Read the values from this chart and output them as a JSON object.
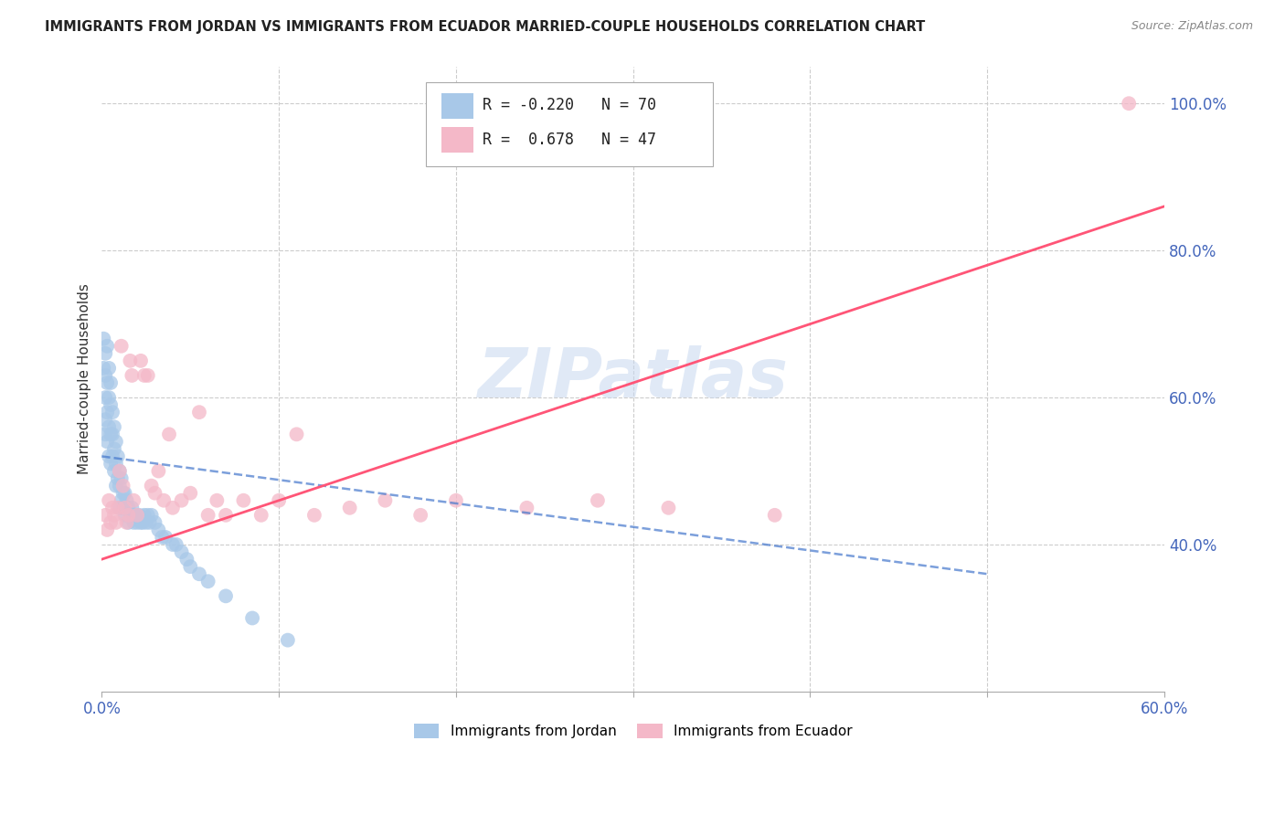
{
  "title": "IMMIGRANTS FROM JORDAN VS IMMIGRANTS FROM ECUADOR MARRIED-COUPLE HOUSEHOLDS CORRELATION CHART",
  "source": "Source: ZipAtlas.com",
  "ylabel": "Married-couple Households",
  "xlim": [
    0.0,
    0.6
  ],
  "ylim": [
    0.2,
    1.05
  ],
  "ytick_positions_right": [
    0.4,
    0.6,
    0.8,
    1.0
  ],
  "ytick_labels_right": [
    "40.0%",
    "60.0%",
    "80.0%",
    "100.0%"
  ],
  "xtick_pos": [
    0.0,
    0.1,
    0.2,
    0.3,
    0.4,
    0.5,
    0.6
  ],
  "xtick_labels": [
    "0.0%",
    "",
    "",
    "",
    "",
    "",
    "60.0%"
  ],
  "jordan_color": "#a8c8e8",
  "ecuador_color": "#f4b8c8",
  "jordan_line_color": "#4477cc",
  "ecuador_line_color": "#ff5577",
  "grid_color": "#cccccc",
  "background_color": "#ffffff",
  "R_jordan": -0.22,
  "N_jordan": 70,
  "R_ecuador": 0.678,
  "N_ecuador": 47,
  "watermark": "ZIPatlas",
  "legend_R_jordan": "R = -0.220",
  "legend_N_jordan": "N = 70",
  "legend_R_ecuador": "R =  0.678",
  "legend_N_ecuador": "N = 47",
  "jordan_x": [
    0.001,
    0.001,
    0.002,
    0.002,
    0.002,
    0.002,
    0.002,
    0.003,
    0.003,
    0.003,
    0.003,
    0.004,
    0.004,
    0.004,
    0.004,
    0.005,
    0.005,
    0.005,
    0.005,
    0.006,
    0.006,
    0.006,
    0.007,
    0.007,
    0.007,
    0.008,
    0.008,
    0.008,
    0.009,
    0.009,
    0.01,
    0.01,
    0.01,
    0.011,
    0.011,
    0.012,
    0.012,
    0.013,
    0.013,
    0.014,
    0.015,
    0.015,
    0.016,
    0.017,
    0.018,
    0.018,
    0.019,
    0.02,
    0.021,
    0.022,
    0.023,
    0.024,
    0.025,
    0.026,
    0.027,
    0.028,
    0.03,
    0.032,
    0.034,
    0.036,
    0.04,
    0.042,
    0.045,
    0.048,
    0.05,
    0.055,
    0.06,
    0.07,
    0.085,
    0.105
  ],
  "jordan_y": [
    0.68,
    0.64,
    0.66,
    0.63,
    0.6,
    0.57,
    0.55,
    0.67,
    0.62,
    0.58,
    0.54,
    0.64,
    0.6,
    0.56,
    0.52,
    0.62,
    0.59,
    0.55,
    0.51,
    0.58,
    0.55,
    0.52,
    0.56,
    0.53,
    0.5,
    0.54,
    0.51,
    0.48,
    0.52,
    0.49,
    0.5,
    0.48,
    0.45,
    0.49,
    0.46,
    0.47,
    0.45,
    0.47,
    0.44,
    0.46,
    0.45,
    0.43,
    0.44,
    0.45,
    0.44,
    0.43,
    0.44,
    0.43,
    0.44,
    0.43,
    0.43,
    0.44,
    0.43,
    0.44,
    0.43,
    0.44,
    0.43,
    0.42,
    0.41,
    0.41,
    0.4,
    0.4,
    0.39,
    0.38,
    0.37,
    0.36,
    0.35,
    0.33,
    0.3,
    0.27
  ],
  "ecuador_x": [
    0.002,
    0.003,
    0.004,
    0.005,
    0.006,
    0.007,
    0.008,
    0.009,
    0.01,
    0.011,
    0.012,
    0.013,
    0.014,
    0.015,
    0.016,
    0.017,
    0.018,
    0.02,
    0.022,
    0.024,
    0.026,
    0.028,
    0.03,
    0.032,
    0.035,
    0.038,
    0.04,
    0.045,
    0.05,
    0.055,
    0.06,
    0.065,
    0.07,
    0.08,
    0.09,
    0.1,
    0.11,
    0.12,
    0.14,
    0.16,
    0.18,
    0.2,
    0.24,
    0.28,
    0.32,
    0.38,
    0.58
  ],
  "ecuador_y": [
    0.44,
    0.42,
    0.46,
    0.43,
    0.45,
    0.44,
    0.43,
    0.45,
    0.5,
    0.67,
    0.48,
    0.45,
    0.43,
    0.44,
    0.65,
    0.63,
    0.46,
    0.44,
    0.65,
    0.63,
    0.63,
    0.48,
    0.47,
    0.5,
    0.46,
    0.55,
    0.45,
    0.46,
    0.47,
    0.58,
    0.44,
    0.46,
    0.44,
    0.46,
    0.44,
    0.46,
    0.55,
    0.44,
    0.45,
    0.46,
    0.44,
    0.46,
    0.45,
    0.46,
    0.45,
    0.44,
    1.0
  ],
  "jordan_line_x": [
    0.0,
    0.5
  ],
  "jordan_line_y": [
    0.52,
    0.36
  ],
  "ecuador_line_x": [
    0.0,
    0.6
  ],
  "ecuador_line_y": [
    0.38,
    0.86
  ]
}
